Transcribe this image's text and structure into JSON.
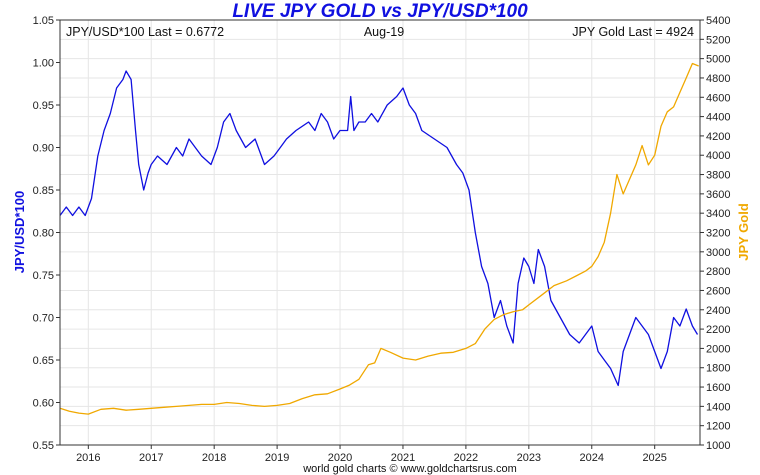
{
  "chart_data": {
    "type": "line",
    "title": "LIVE JPY GOLD vs JPY/USD*100",
    "left_annotation": "JPY/USD*100 Last = 0.6772",
    "center_annotation": "Aug-19",
    "right_annotation": "JPY Gold Last = 4924",
    "footer": "world gold charts © www.goldchartsrus.com",
    "ylabel_left": "JPY/USD*100",
    "ylabel_right": "JPY Gold",
    "xlim": [
      2015.55,
      2025.72
    ],
    "ylim_left": [
      0.55,
      1.05
    ],
    "ylim_right": [
      1000,
      5400
    ],
    "x_ticks": [
      2016,
      2017,
      2018,
      2019,
      2020,
      2021,
      2022,
      2023,
      2024,
      2025
    ],
    "x_tick_labels": [
      "2016",
      "2017",
      "2018",
      "2019",
      "2020",
      "2021",
      "2022",
      "2023",
      "2024",
      "2025"
    ],
    "y_left_ticks": [
      0.55,
      0.6,
      0.65,
      0.7,
      0.75,
      0.8,
      0.85,
      0.9,
      0.95,
      1.0,
      1.05
    ],
    "y_left_tick_labels": [
      "0.55",
      "0.60",
      "0.65",
      "0.70",
      "0.75",
      "0.80",
      "0.85",
      "0.90",
      "0.95",
      "1.00",
      "1.05"
    ],
    "y_right_ticks": [
      1000,
      1200,
      1400,
      1600,
      1800,
      2000,
      2200,
      2400,
      2600,
      2800,
      3000,
      3200,
      3400,
      3600,
      3800,
      4000,
      4200,
      4400,
      4600,
      4800,
      5000,
      5200,
      5400
    ],
    "y_right_tick_labels": [
      "1000",
      "1200",
      "1400",
      "1600",
      "1800",
      "2000",
      "2200",
      "2400",
      "2600",
      "2800",
      "3000",
      "3200",
      "3400",
      "3600",
      "3800",
      "4000",
      "4200",
      "4400",
      "4600",
      "4800",
      "5000",
      "5200",
      "5400"
    ],
    "grid": true,
    "colors": {
      "jpy_usd": "#1010e0",
      "jpy_gold": "#f0a800",
      "title": "#1010e0",
      "label_left": "#1010e0",
      "label_right": "#f0a800"
    },
    "series": [
      {
        "axis": "left",
        "x": [
          2015.55,
          2015.65,
          2015.75,
          2015.85,
          2015.95,
          2016.05,
          2016.15,
          2016.25,
          2016.35,
          2016.45,
          2016.55,
          2016.6,
          2016.68,
          2016.75,
          2016.8,
          2016.88,
          2016.95,
          2017.0,
          2017.1,
          2017.25,
          2017.4,
          2017.5,
          2017.6,
          2017.7,
          2017.8,
          2017.95,
          2018.05,
          2018.15,
          2018.25,
          2018.35,
          2018.5,
          2018.65,
          2018.8,
          2018.95,
          2019.05,
          2019.15,
          2019.3,
          2019.5,
          2019.6,
          2019.7,
          2019.8,
          2019.9,
          2020.0,
          2020.12,
          2020.17,
          2020.22,
          2020.3,
          2020.4,
          2020.5,
          2020.6,
          2020.75,
          2020.9,
          2021.0,
          2021.1,
          2021.2,
          2021.3,
          2021.5,
          2021.7,
          2021.85,
          2021.95,
          2022.05,
          2022.15,
          2022.25,
          2022.35,
          2022.45,
          2022.55,
          2022.65,
          2022.75,
          2022.83,
          2022.92,
          2023.0,
          2023.08,
          2023.15,
          2023.25,
          2023.35,
          2023.5,
          2023.65,
          2023.8,
          2023.9,
          2024.0,
          2024.1,
          2024.2,
          2024.3,
          2024.42,
          2024.5,
          2024.6,
          2024.7,
          2024.8,
          2024.9,
          2025.0,
          2025.1,
          2025.2,
          2025.3,
          2025.4,
          2025.5,
          2025.6,
          2025.68
        ],
        "values": [
          0.82,
          0.83,
          0.82,
          0.83,
          0.82,
          0.84,
          0.89,
          0.92,
          0.94,
          0.97,
          0.98,
          0.99,
          0.98,
          0.92,
          0.88,
          0.85,
          0.87,
          0.88,
          0.89,
          0.88,
          0.9,
          0.89,
          0.91,
          0.9,
          0.89,
          0.88,
          0.9,
          0.93,
          0.94,
          0.92,
          0.9,
          0.91,
          0.88,
          0.89,
          0.9,
          0.91,
          0.92,
          0.93,
          0.92,
          0.94,
          0.93,
          0.91,
          0.92,
          0.92,
          0.96,
          0.92,
          0.93,
          0.93,
          0.94,
          0.93,
          0.95,
          0.96,
          0.97,
          0.95,
          0.94,
          0.92,
          0.91,
          0.9,
          0.88,
          0.87,
          0.85,
          0.8,
          0.76,
          0.74,
          0.7,
          0.72,
          0.69,
          0.67,
          0.74,
          0.77,
          0.76,
          0.74,
          0.78,
          0.76,
          0.72,
          0.7,
          0.68,
          0.67,
          0.68,
          0.69,
          0.66,
          0.65,
          0.64,
          0.62,
          0.66,
          0.68,
          0.7,
          0.69,
          0.68,
          0.66,
          0.64,
          0.66,
          0.7,
          0.69,
          0.71,
          0.69,
          0.68
        ]
      },
      {
        "axis": "right",
        "x": [
          2015.55,
          2015.7,
          2015.85,
          2016.0,
          2016.2,
          2016.4,
          2016.6,
          2016.8,
          2017.0,
          2017.2,
          2017.4,
          2017.6,
          2017.8,
          2018.0,
          2018.2,
          2018.4,
          2018.6,
          2018.8,
          2019.0,
          2019.2,
          2019.4,
          2019.6,
          2019.8,
          2020.0,
          2020.15,
          2020.3,
          2020.45,
          2020.55,
          2020.65,
          2020.8,
          2021.0,
          2021.2,
          2021.4,
          2021.6,
          2021.8,
          2022.0,
          2022.15,
          2022.3,
          2022.45,
          2022.6,
          2022.75,
          2022.9,
          2023.0,
          2023.2,
          2023.4,
          2023.6,
          2023.75,
          2023.9,
          2024.0,
          2024.1,
          2024.2,
          2024.3,
          2024.4,
          2024.5,
          2024.6,
          2024.7,
          2024.8,
          2024.9,
          2025.0,
          2025.1,
          2025.2,
          2025.3,
          2025.4,
          2025.5,
          2025.6,
          2025.7
        ],
        "values": [
          1380,
          1350,
          1330,
          1320,
          1370,
          1380,
          1360,
          1370,
          1380,
          1390,
          1400,
          1410,
          1420,
          1420,
          1440,
          1430,
          1410,
          1400,
          1410,
          1430,
          1480,
          1520,
          1530,
          1580,
          1620,
          1680,
          1830,
          1850,
          2000,
          1960,
          1900,
          1880,
          1920,
          1950,
          1960,
          2000,
          2050,
          2200,
          2300,
          2350,
          2380,
          2400,
          2450,
          2550,
          2650,
          2700,
          2750,
          2800,
          2850,
          2950,
          3100,
          3400,
          3800,
          3600,
          3750,
          3900,
          4100,
          3900,
          4000,
          4300,
          4450,
          4500,
          4650,
          4800,
          4950,
          4924
        ]
      }
    ]
  }
}
